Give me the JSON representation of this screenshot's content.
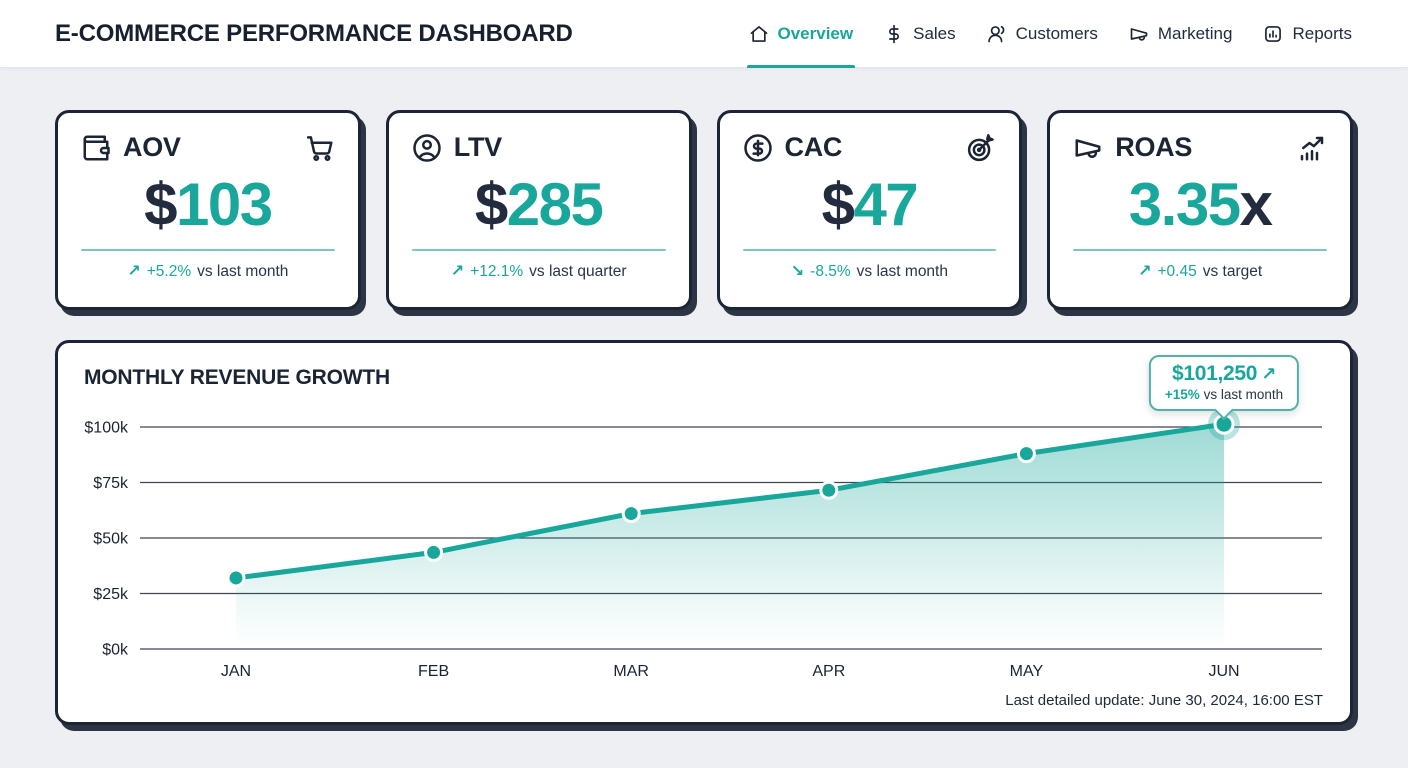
{
  "header": {
    "title": "E-COMMERCE PERFORMANCE DASHBOARD",
    "nav": [
      {
        "label": "Overview",
        "icon": "home-icon",
        "active": true
      },
      {
        "label": "Sales",
        "icon": "dollar-icon",
        "active": false
      },
      {
        "label": "Customers",
        "icon": "users-icon",
        "active": false
      },
      {
        "label": "Marketing",
        "icon": "megaphone-icon",
        "active": false
      },
      {
        "label": "Reports",
        "icon": "report-icon",
        "active": false
      }
    ]
  },
  "kpi_cards": [
    {
      "label": "AOV",
      "icon": "wallet-icon",
      "secondary_icon": "cart-icon",
      "prefix": "$",
      "value": "103",
      "suffix": "",
      "change_arrow": "↗",
      "change_value": "+5.2%",
      "change_label": "vs last month"
    },
    {
      "label": "LTV",
      "icon": "user-circle-icon",
      "secondary_icon": null,
      "prefix": "$",
      "value": "285",
      "suffix": "",
      "change_arrow": "↗",
      "change_value": "+12.1%",
      "change_label": "vs last quarter"
    },
    {
      "label": "CAC",
      "icon": "dollar-circle-icon",
      "secondary_icon": "target-icon",
      "prefix": "$",
      "value": "47",
      "suffix": "",
      "change_arrow": "↘",
      "change_value": "-8.5%",
      "change_label": "vs last month"
    },
    {
      "label": "ROAS",
      "icon": "megaphone-icon",
      "secondary_icon": "growth-icon",
      "prefix": "",
      "value": "3.35",
      "suffix": "x",
      "change_arrow": "↗",
      "change_value": "+0.45",
      "change_label": "vs target"
    }
  ],
  "chart_data": {
    "type": "area",
    "title": "MONTHLY REVENUE GROWTH",
    "categories": [
      "JAN",
      "FEB",
      "MAR",
      "APR",
      "MAY",
      "JUN"
    ],
    "values": [
      32000,
      43500,
      61000,
      71500,
      88000,
      101250
    ],
    "ylim": [
      0,
      100000
    ],
    "y_ticks": [
      {
        "label": "$100k",
        "value": 100000
      },
      {
        "label": "$75k",
        "value": 75000
      },
      {
        "label": "$50k",
        "value": 50000
      },
      {
        "label": "$25k",
        "value": 25000
      },
      {
        "label": "$0k",
        "value": 0
      }
    ],
    "grid": true,
    "legend": false,
    "annotation": {
      "value": "$101,250",
      "arrow": "↗",
      "change": "+15%",
      "label": "vs last month"
    },
    "footnote": "Last detailed update: June 30, 2024, 16:00 EST"
  },
  "colors": {
    "accent": "#18a79a",
    "accent_halo": "rgba(24,167,154,0.30)",
    "area_top": "rgba(24,167,154,0.42)",
    "area_bottom": "rgba(24,167,154,0.0)",
    "dark": "#1e2a3b",
    "grid": "#3e4554",
    "card_border": "#1c2536",
    "background": "#edeff3"
  }
}
